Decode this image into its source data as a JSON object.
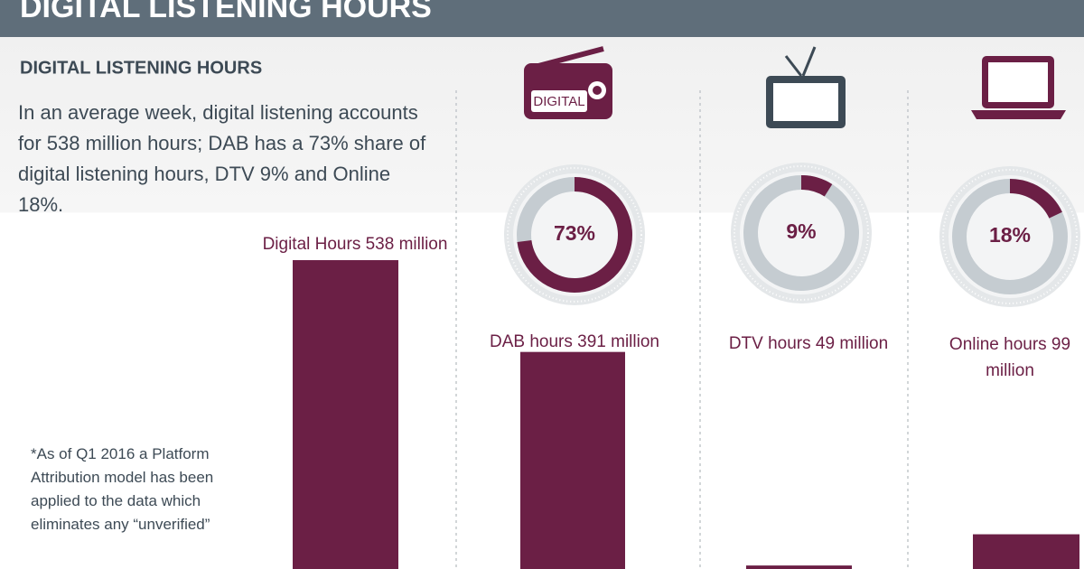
{
  "header": {
    "title": "DIGITAL LISTENING HOURS"
  },
  "subtitle": "DIGITAL LISTENING HOURS",
  "description": "In an average week, digital listening accounts for 538 million hours; DAB has a 73% share of digital listening hours, DTV 9% and Online 18%.",
  "footnote": "*As of Q1 2016 a Platform Attribution model has been applied to the data which eliminates any “unverified”",
  "icons": {
    "radio_label": "DIGITAL"
  },
  "chart_data": [
    {
      "type": "bar",
      "values": [
        538,
        391,
        49,
        99
      ],
      "value_labels": [
        "Digital Hours 538 million",
        "DAB hours 391 million",
        "DTV hours 49 million",
        "Online hours 99 million"
      ],
      "color": "#6b1f45"
    },
    {
      "type": "donut",
      "values": [
        73,
        9,
        18
      ],
      "value_labels": [
        "73%",
        "9%",
        "18%"
      ],
      "color": "#6b1f45",
      "track_color": "#c5ccd1"
    }
  ]
}
